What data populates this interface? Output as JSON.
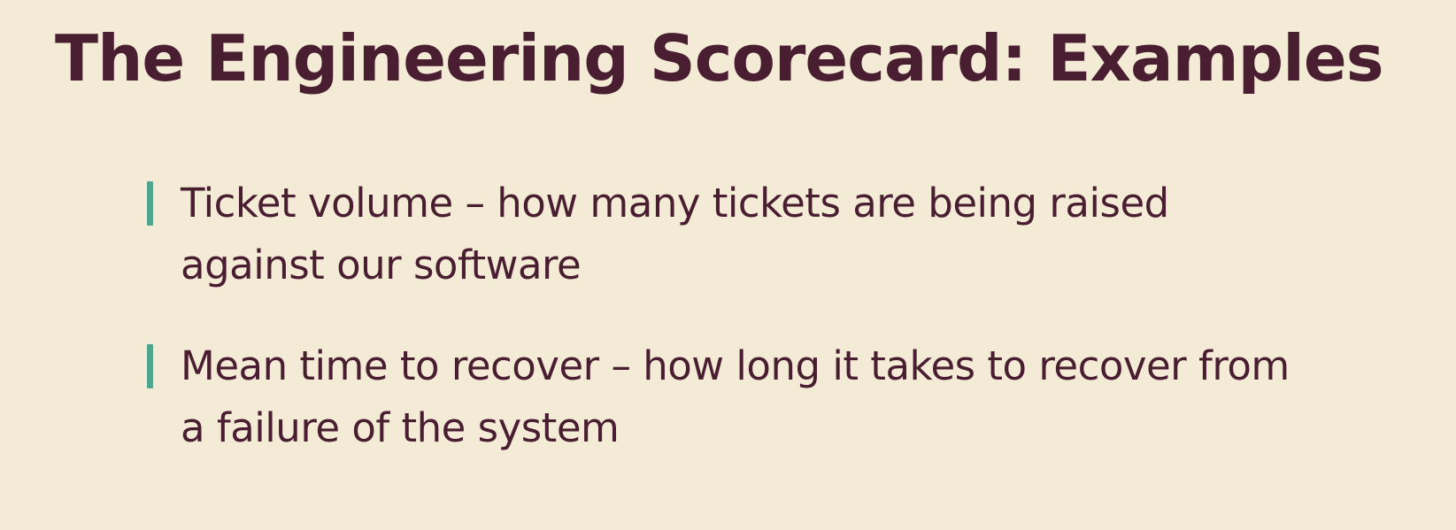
{
  "slide": {
    "title": "The Engineering Scorecard: Examples",
    "bullets": [
      {
        "text": "Ticket volume – how many tickets are being raised against our software"
      },
      {
        "text": "Mean time to recover – how long it takes to recover from a failure of the system"
      }
    ]
  },
  "colors": {
    "background": "#f4ebd7",
    "text": "#4a1e31",
    "accent_bar": "#4fa58d"
  }
}
